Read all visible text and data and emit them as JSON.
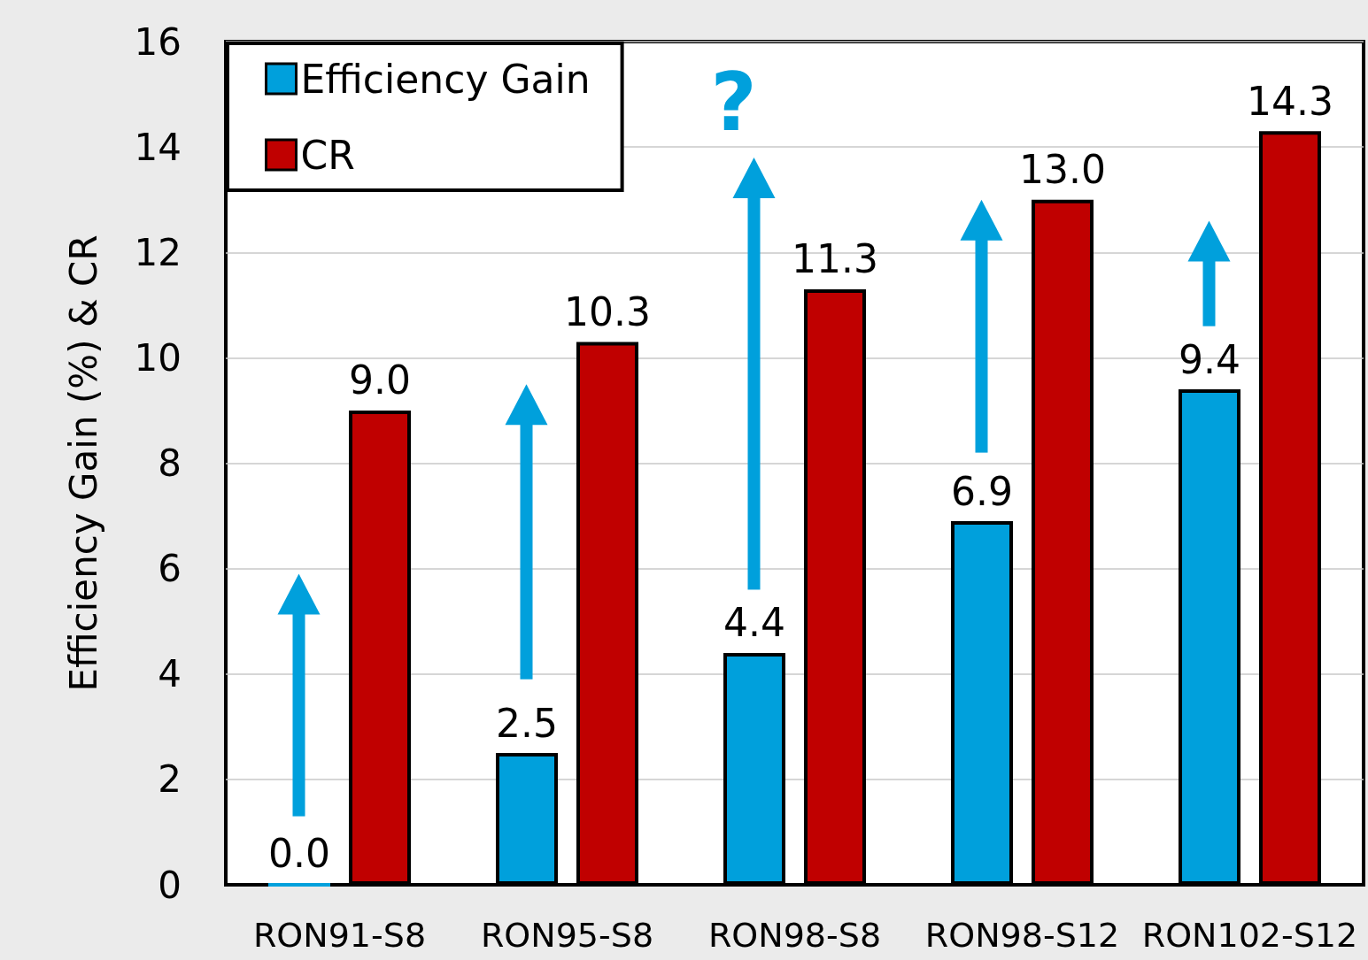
{
  "chart_data": {
    "type": "bar",
    "ylabel": "Efficiency Gain (%) & CR",
    "categories": [
      "RON91-S8",
      "RON95-S8",
      "RON98-S8",
      "RON98-S12",
      "RON102-S12"
    ],
    "series": [
      {
        "name": "Efficiency Gain",
        "color": "#00a0dc",
        "values": [
          0.0,
          2.5,
          4.4,
          6.9,
          9.4
        ],
        "value_labels": [
          "0.0",
          "2.5",
          "4.4",
          "6.9",
          "9.4"
        ]
      },
      {
        "name": "CR",
        "color": "#c00000",
        "values": [
          9.0,
          10.3,
          11.3,
          13.0,
          14.3
        ],
        "value_labels": [
          "9.0",
          "10.3",
          "11.3",
          "13.0",
          "14.3"
        ]
      }
    ],
    "ylim": [
      0,
      16
    ],
    "yticks": [
      0,
      2,
      4,
      6,
      8,
      10,
      12,
      14,
      16
    ],
    "grid": "y",
    "legend": "top left",
    "annotations": [
      "?"
    ]
  }
}
